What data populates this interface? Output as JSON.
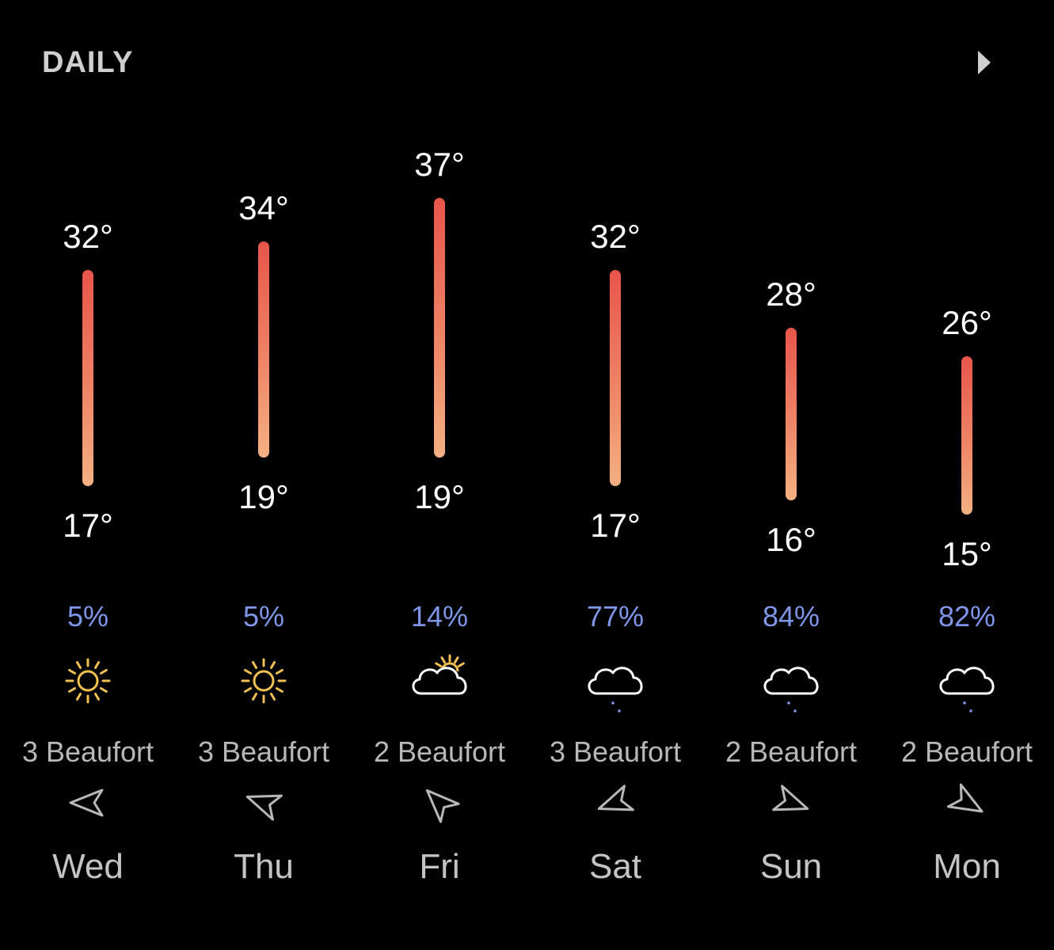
{
  "header": {
    "title": "DAILY",
    "next_icon": "chevron-right-icon"
  },
  "colors": {
    "background": "#000000",
    "bar_top": "#e8554a",
    "bar_bottom": "#f4b083",
    "precip": "#7f96e8",
    "sun": "#f0c050"
  },
  "scale": {
    "temp_min": 15,
    "temp_max": 37
  },
  "days": [
    {
      "day": "Wed",
      "high": "32°",
      "low": "17°",
      "high_value": 32,
      "low_value": 17,
      "precip": "5%",
      "icon": "sun-icon",
      "wind": "3 Beaufort",
      "wind_icon": "wind-direction-icon",
      "wind_dir_deg": 270
    },
    {
      "day": "Thu",
      "high": "34°",
      "low": "19°",
      "high_value": 34,
      "low_value": 19,
      "precip": "5%",
      "icon": "sun-icon",
      "wind": "3 Beaufort",
      "wind_icon": "wind-direction-icon",
      "wind_dir_deg": 290
    },
    {
      "day": "Fri",
      "high": "37°",
      "low": "19°",
      "high_value": 37,
      "low_value": 19,
      "precip": "14%",
      "icon": "partly-cloudy-icon",
      "wind": "2 Beaufort",
      "wind_icon": "wind-direction-icon",
      "wind_dir_deg": 315
    },
    {
      "day": "Sat",
      "high": "32°",
      "low": "17°",
      "high_value": 32,
      "low_value": 17,
      "precip": "77%",
      "icon": "cloud-drizzle-icon",
      "wind": "3 Beaufort",
      "wind_icon": "wind-direction-icon",
      "wind_dir_deg": 250
    },
    {
      "day": "Sun",
      "high": "28°",
      "low": "16°",
      "high_value": 28,
      "low_value": 16,
      "precip": "84%",
      "icon": "cloud-drizzle-icon",
      "wind": "2 Beaufort",
      "wind_icon": "wind-direction-icon",
      "wind_dir_deg": 110
    },
    {
      "day": "Mon",
      "high": "26°",
      "low": "15°",
      "high_value": 26,
      "low_value": 15,
      "precip": "82%",
      "icon": "cloud-drizzle-icon",
      "wind": "2 Beaufort",
      "wind_icon": "wind-direction-icon",
      "wind_dir_deg": 120
    }
  ]
}
